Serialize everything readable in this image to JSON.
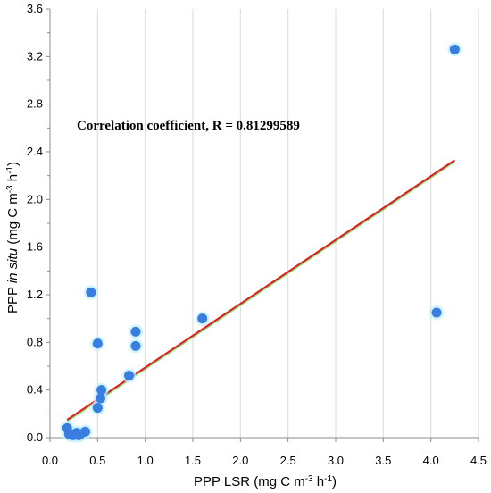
{
  "chart_data": {
    "type": "scatter",
    "xlabel": "PPP  LSR (mg C m-3 h-1)",
    "ylabel": "PPP in situ (mg C m-3 h-1)",
    "xlim": [
      0.0,
      4.5
    ],
    "ylim": [
      0.0,
      3.6
    ],
    "x_ticks": [
      "0.0",
      "0.5",
      "1.0",
      "1.5",
      "2.0",
      "2.5",
      "3.0",
      "3.5",
      "4.0",
      "4.5"
    ],
    "y_ticks": [
      "0.0",
      "0.4",
      "0.8",
      "1.2",
      "1.6",
      "2.0",
      "2.4",
      "2.8",
      "3.2",
      "3.6"
    ],
    "grid": "vertical gridlines at major x ticks",
    "annotation": "Correlation coefficient, R = 0.81299589",
    "marker_color": "#3a7de0",
    "marker_halo_color": "#b8f0ff",
    "trendline_color": "#e41a1c",
    "trendline_shadow_color": "#33cc33",
    "points": [
      {
        "x": 0.18,
        "y": 0.08
      },
      {
        "x": 0.2,
        "y": 0.03
      },
      {
        "x": 0.24,
        "y": 0.02
      },
      {
        "x": 0.28,
        "y": 0.04
      },
      {
        "x": 0.3,
        "y": 0.02
      },
      {
        "x": 0.32,
        "y": 0.03
      },
      {
        "x": 0.37,
        "y": 0.05
      },
      {
        "x": 0.43,
        "y": 1.22
      },
      {
        "x": 0.5,
        "y": 0.79
      },
      {
        "x": 0.5,
        "y": 0.25
      },
      {
        "x": 0.53,
        "y": 0.33
      },
      {
        "x": 0.54,
        "y": 0.4
      },
      {
        "x": 0.83,
        "y": 0.52
      },
      {
        "x": 0.9,
        "y": 0.89
      },
      {
        "x": 0.9,
        "y": 0.77
      },
      {
        "x": 1.6,
        "y": 1.0
      },
      {
        "x": 4.06,
        "y": 1.05
      },
      {
        "x": 4.25,
        "y": 3.26
      }
    ],
    "trendline": {
      "x": [
        0.18,
        4.25
      ],
      "y": [
        0.15,
        2.33
      ]
    }
  }
}
